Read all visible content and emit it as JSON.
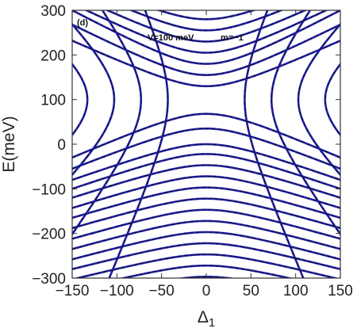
{
  "chart_data": {
    "type": "line",
    "xlabel": "Δ₁",
    "ylabel": "E(meV)",
    "xlim": [
      -150,
      150
    ],
    "ylim": [
      -300,
      300
    ],
    "x_ticks": [
      -150,
      -100,
      -50,
      0,
      50,
      100,
      150
    ],
    "y_ticks": [
      -300,
      -200,
      -100,
      0,
      100,
      200,
      300
    ],
    "x_tick_labels": [
      "−150",
      "−100",
      "−50",
      "0",
      "50",
      "100",
      "150"
    ],
    "y_tick_labels": [
      "−300",
      "−200",
      "−100",
      "0",
      "100",
      "200",
      "300"
    ],
    "grid": false,
    "annotations": {
      "panel": "(d)",
      "potential": "V=100 meV",
      "m": "m=−1"
    },
    "colors": {
      "solid_line": "#1f1fa8",
      "dashed_line": "#111111",
      "frame": "#333333"
    },
    "level_spacing": 25,
    "saddle": {
      "x": 0,
      "E": 100
    },
    "horizontal_curves_above": [
      {
        "E_at_0": 130,
        "E_at_edge": 232
      },
      {
        "E_at_0": 155,
        "E_at_edge": 268
      },
      {
        "E_at_0": 180,
        "E_at_edge": 300
      },
      {
        "E_at_0": 205,
        "E_at_edge": 315
      },
      {
        "E_at_0": 230,
        "E_at_edge": 335
      },
      {
        "E_at_0": 255,
        "E_at_edge": 355
      },
      {
        "E_at_0": 280,
        "E_at_edge": 372
      }
    ],
    "horizontal_curves_below": [
      {
        "E_at_0": 68,
        "E_at_edge": -30
      },
      {
        "E_at_0": 35,
        "E_at_edge": -55
      },
      {
        "E_at_0": 0,
        "E_at_edge": -80
      },
      {
        "E_at_0": -22,
        "E_at_edge": -100
      },
      {
        "E_at_0": -47,
        "E_at_edge": -120
      },
      {
        "E_at_0": -72,
        "E_at_edge": -143
      },
      {
        "E_at_0": -97,
        "E_at_edge": -165
      },
      {
        "E_at_0": -122,
        "E_at_edge": -188
      },
      {
        "E_at_0": -147,
        "E_at_edge": -212
      },
      {
        "E_at_0": -172,
        "E_at_edge": -235
      },
      {
        "E_at_0": -197,
        "E_at_edge": -258
      },
      {
        "E_at_0": -222,
        "E_at_edge": -280
      },
      {
        "E_at_0": -247,
        "E_at_edge": -303
      },
      {
        "E_at_0": -272,
        "E_at_edge": -326
      },
      {
        "E_at_0": -297,
        "E_at_edge": -350
      }
    ],
    "vertical_curves": [
      {
        "x_vertex": 43
      },
      {
        "x_vertex": 73
      },
      {
        "x_vertex": 103
      },
      {
        "x_vertex": 133
      }
    ]
  }
}
